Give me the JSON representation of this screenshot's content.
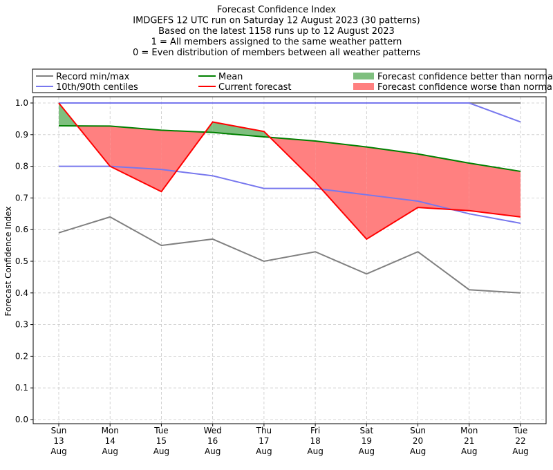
{
  "chart_data": {
    "type": "line",
    "title_lines": [
      "Forecast Confidence Index",
      "IMDGEFS 12 UTC run on Saturday 12 August 2023 (30 patterns)",
      "Based on the latest 1158 runs up to 12 August 2023",
      "1 = All members assigned to the same weather pattern",
      "0 = Even distribution of members between all weather patterns"
    ],
    "ylabel": "Forecast Confidence Index",
    "xlabel": "",
    "ylim": [
      0,
      1
    ],
    "yticks": [
      0.0,
      0.1,
      0.2,
      0.3,
      0.4,
      0.5,
      0.6,
      0.7,
      0.8,
      0.9,
      1.0
    ],
    "ytick_labels": [
      "0.0",
      "0.1",
      "0.2",
      "0.3",
      "0.4",
      "0.5",
      "0.6",
      "0.7",
      "0.8",
      "0.9",
      "1.0"
    ],
    "categories": [
      [
        "Sun",
        "13",
        "Aug"
      ],
      [
        "Mon",
        "14",
        "Aug"
      ],
      [
        "Tue",
        "15",
        "Aug"
      ],
      [
        "Wed",
        "16",
        "Aug"
      ],
      [
        "Thu",
        "17",
        "Aug"
      ],
      [
        "Fri",
        "18",
        "Aug"
      ],
      [
        "Sat",
        "19",
        "Aug"
      ],
      [
        "Sun",
        "20",
        "Aug"
      ],
      [
        "Mon",
        "21",
        "Aug"
      ],
      [
        "Tue",
        "22",
        "Aug"
      ]
    ],
    "grid": true,
    "legend_position": "top",
    "series": [
      {
        "key": "record_max",
        "name": "Record min/max",
        "color": "#808080",
        "values": [
          1.0,
          1.0,
          1.0,
          1.0,
          1.0,
          1.0,
          1.0,
          1.0,
          1.0,
          1.0
        ]
      },
      {
        "key": "record_min",
        "name": "Record min/max",
        "color": "#808080",
        "values": [
          0.59,
          0.64,
          0.55,
          0.57,
          0.5,
          0.53,
          0.46,
          0.53,
          0.41,
          0.4
        ]
      },
      {
        "key": "p90",
        "name": "10th/90th centiles",
        "color": "#7777ee",
        "values": [
          1.0,
          1.0,
          1.0,
          1.0,
          1.0,
          1.0,
          1.0,
          1.0,
          1.0,
          0.94
        ]
      },
      {
        "key": "p10",
        "name": "10th/90th centiles",
        "color": "#7777ee",
        "values": [
          0.8,
          0.8,
          0.79,
          0.77,
          0.73,
          0.73,
          0.71,
          0.69,
          0.65,
          0.62
        ]
      },
      {
        "key": "mean",
        "name": "Mean",
        "color": "#008000",
        "values": [
          0.928,
          0.927,
          0.914,
          0.907,
          0.893,
          0.88,
          0.861,
          0.839,
          0.81,
          0.784
        ]
      },
      {
        "key": "current",
        "name": "Current forecast",
        "color": "#ff0000",
        "values": [
          1.0,
          0.8,
          0.72,
          0.94,
          0.91,
          0.75,
          0.57,
          0.67,
          0.66,
          0.64
        ]
      }
    ],
    "fills": {
      "better": {
        "name": "Forecast confidence better than normal",
        "color": "#7fbf7f"
      },
      "worse": {
        "name": "Forecast confidence worse than normal",
        "color": "#ff8080"
      }
    },
    "legend": [
      {
        "label": "Record min/max",
        "kind": "line",
        "color": "#808080"
      },
      {
        "label": "Mean",
        "kind": "line",
        "color": "#008000"
      },
      {
        "label": "Forecast confidence better than normal",
        "kind": "patch",
        "color": "#7fbf7f"
      },
      {
        "label": "10th/90th centiles",
        "kind": "line",
        "color": "#7777ee"
      },
      {
        "label": "Current forecast",
        "kind": "line",
        "color": "#ff0000"
      },
      {
        "label": "Forecast confidence worse than normal",
        "kind": "patch",
        "color": "#ff8080"
      }
    ]
  }
}
